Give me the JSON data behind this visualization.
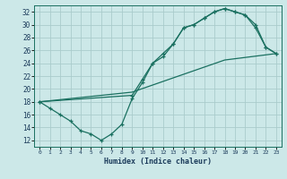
{
  "xlabel": "Humidex (Indice chaleur)",
  "xlim": [
    -0.5,
    23.5
  ],
  "ylim": [
    11,
    33
  ],
  "yticks": [
    12,
    14,
    16,
    18,
    20,
    22,
    24,
    26,
    28,
    30,
    32
  ],
  "xticks": [
    0,
    1,
    2,
    3,
    4,
    5,
    6,
    7,
    8,
    9,
    10,
    11,
    12,
    13,
    14,
    15,
    16,
    17,
    18,
    19,
    20,
    21,
    22,
    23
  ],
  "bg_color": "#cce8e8",
  "grid_color": "#aacccc",
  "line_color": "#1a7060",
  "line1_x": [
    0,
    1,
    2,
    3,
    4,
    5,
    6,
    7,
    8,
    9,
    10,
    11,
    12,
    13,
    14,
    15,
    16,
    17,
    18,
    19,
    20,
    21,
    22,
    23
  ],
  "line1_y": [
    18,
    17,
    16,
    15,
    13.5,
    13,
    12,
    13,
    14.5,
    18.5,
    21,
    24,
    25,
    27,
    29.5,
    30,
    31,
    32,
    32.5,
    32,
    31.5,
    29.5,
    26.5,
    25.5
  ],
  "line2_x": [
    0,
    9,
    10,
    11,
    12,
    13,
    14,
    15,
    16,
    17,
    18,
    19,
    20,
    21,
    22,
    23
  ],
  "line2_y": [
    18,
    19,
    21.5,
    24,
    25.5,
    27,
    29.5,
    30,
    31,
    32,
    32.5,
    32,
    31.5,
    30,
    26.5,
    25.5
  ],
  "line3_x": [
    0,
    3,
    9,
    18,
    23
  ],
  "line3_y": [
    18,
    18.5,
    19.5,
    24.5,
    25.5
  ]
}
